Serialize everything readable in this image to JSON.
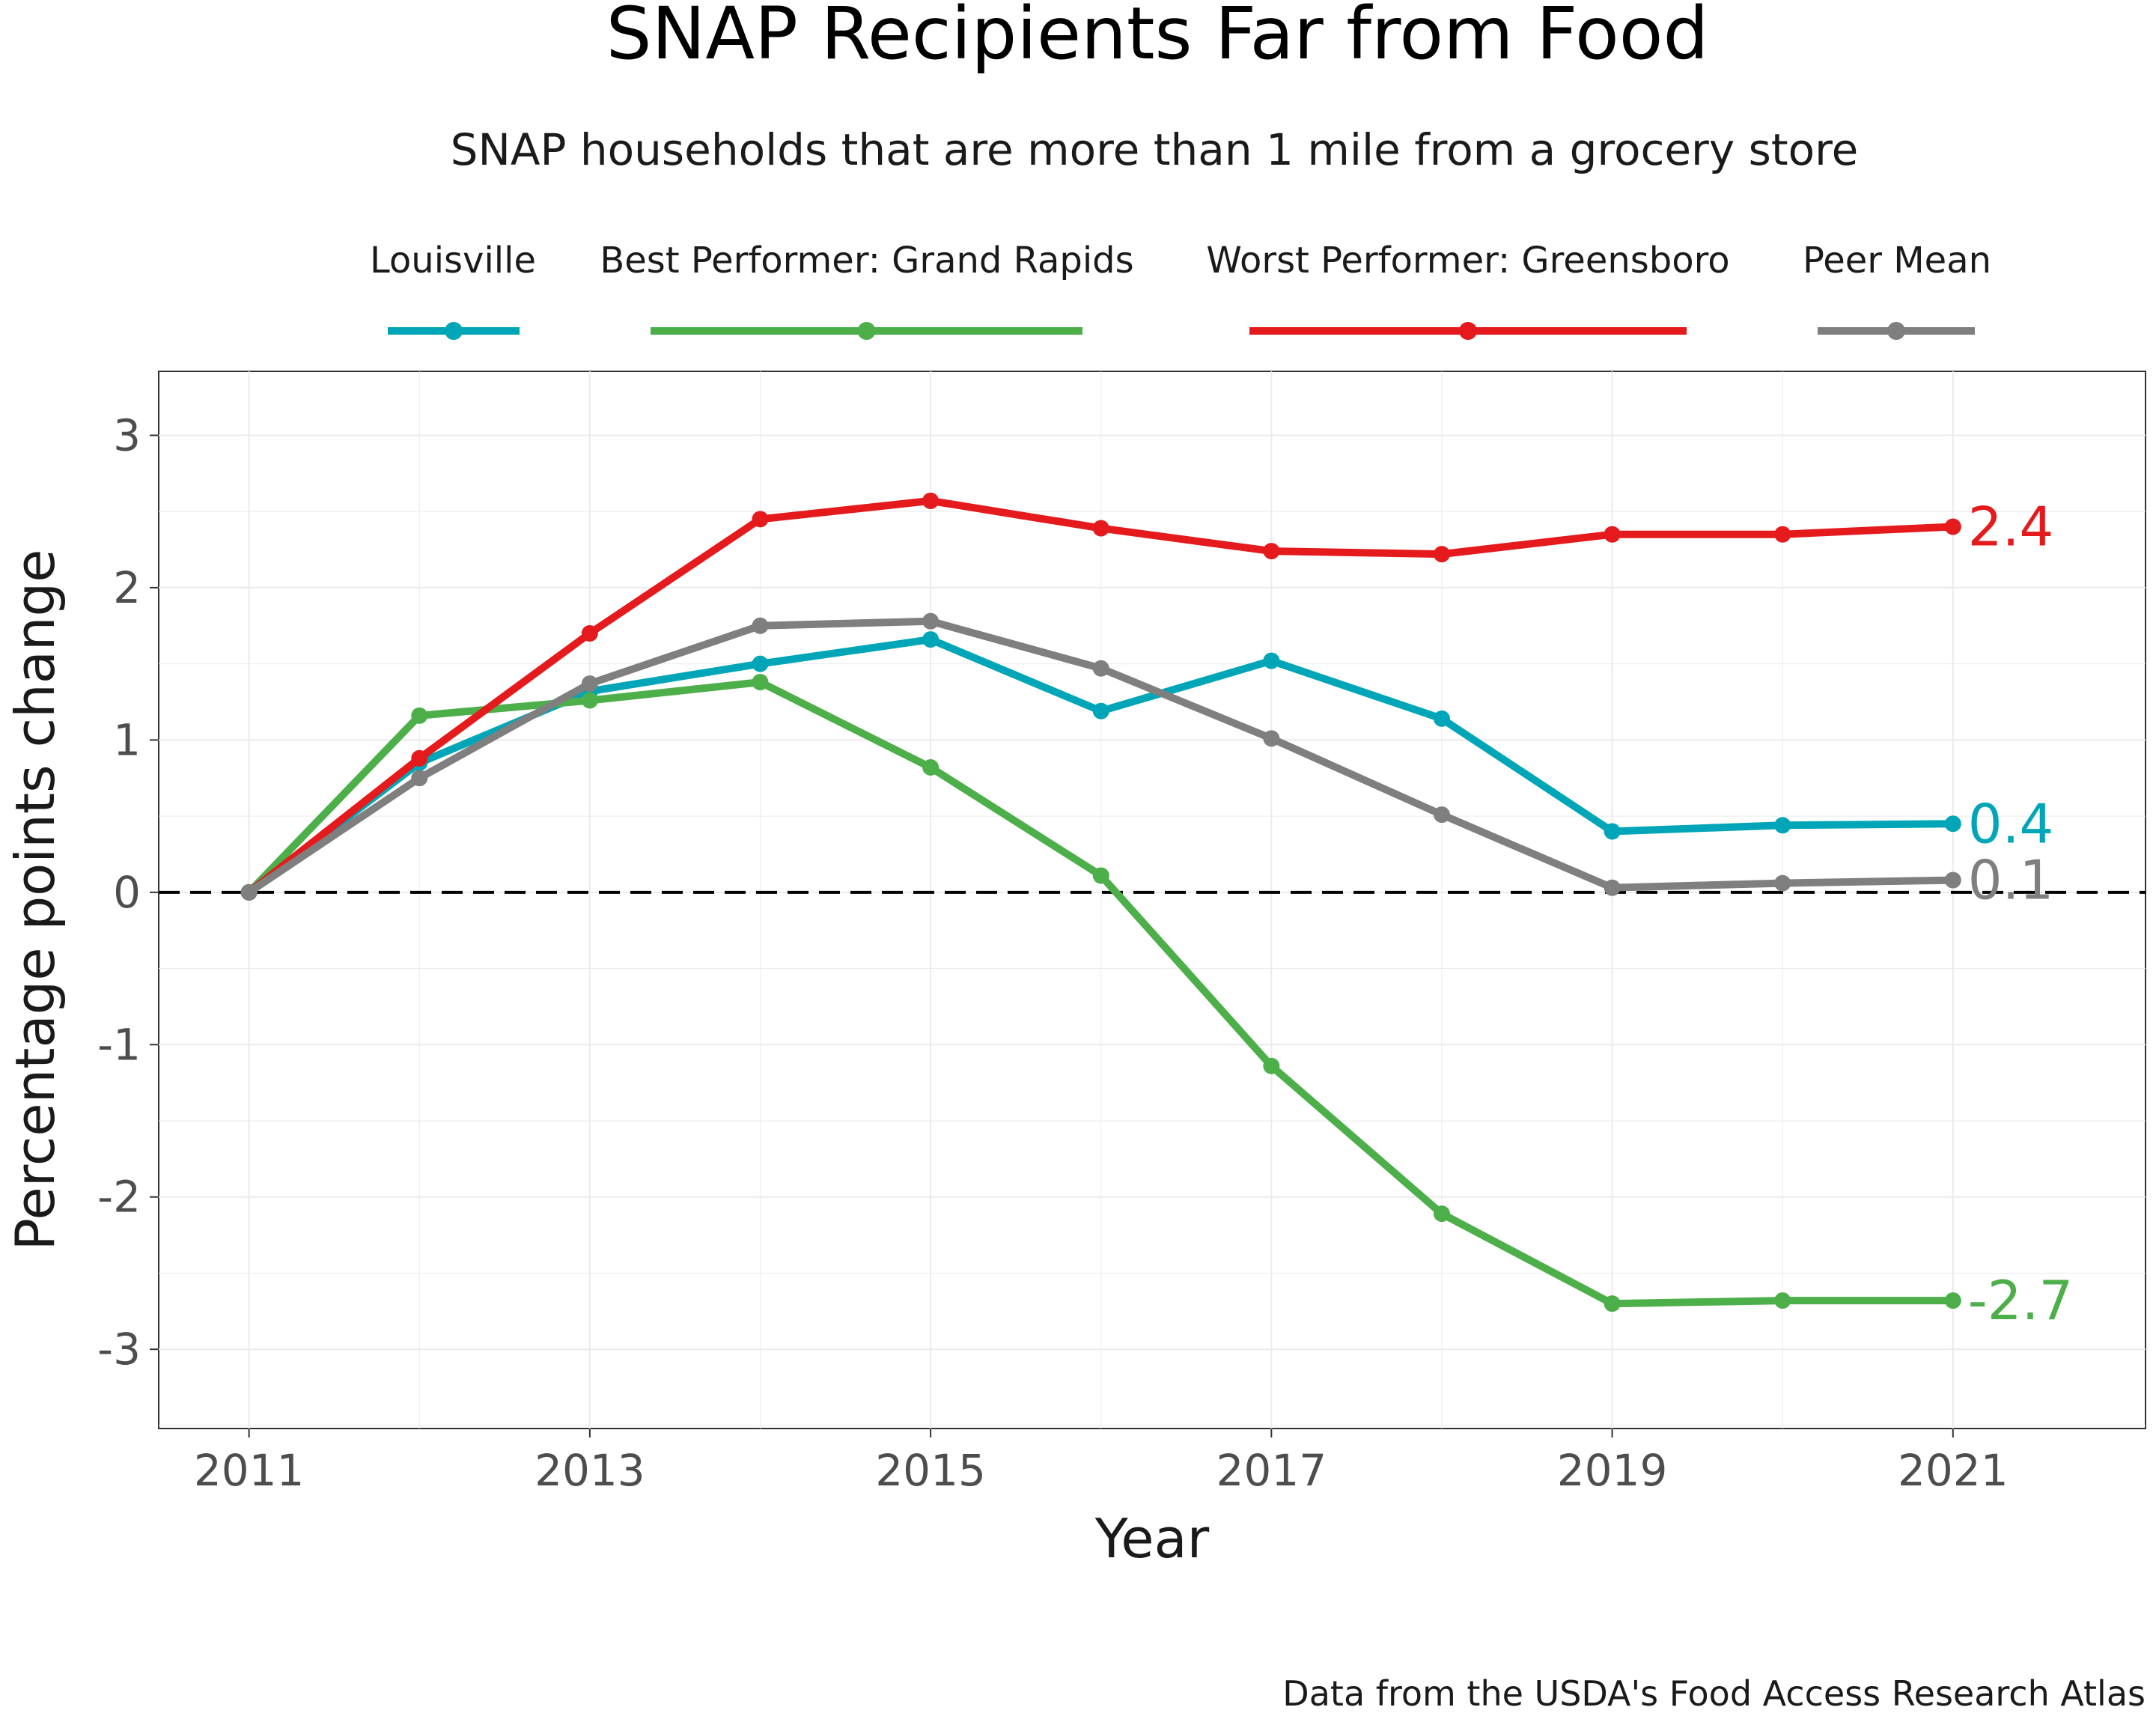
{
  "title": "SNAP Recipients Far from Food",
  "subtitle": "SNAP households that are more than 1 mile from a grocery store",
  "caption": "Data from the USDA's Food Access Research Atlas",
  "chart_data": {
    "type": "line",
    "xlabel": "Year",
    "ylabel": "Percentage points change",
    "x": [
      2011,
      2012,
      2013,
      2014,
      2015,
      2016,
      2017,
      2018,
      2019,
      2020,
      2021
    ],
    "xticks": [
      "2011",
      "2013",
      "2015",
      "2017",
      "2019",
      "2021"
    ],
    "xlim": [
      2010.47,
      2022.13
    ],
    "ylim": [
      -3.52,
      3.42
    ],
    "yticks": [
      "-3",
      "-2",
      "-1",
      "0",
      "1",
      "2",
      "3"
    ],
    "grid": true,
    "legend_position": "top",
    "reference_line": {
      "y": 0,
      "style": "dashed"
    },
    "series": [
      {
        "name": "Louisville",
        "color": "#00A6B8",
        "end_label": "0.4",
        "values": [
          0,
          0.85,
          1.32,
          1.5,
          1.66,
          1.19,
          1.52,
          1.14,
          0.4,
          0.44,
          0.45
        ]
      },
      {
        "name": "Best Performer: Grand Rapids",
        "color": "#4DAF4A",
        "end_label": "-2.7",
        "values": [
          0,
          1.16,
          1.26,
          1.38,
          0.82,
          0.11,
          -1.14,
          -2.11,
          -2.7,
          -2.68,
          -2.68
        ]
      },
      {
        "name": "Worst Performer: Greensboro",
        "color": "#E41A1C",
        "end_label": "2.4",
        "values": [
          0,
          0.88,
          1.7,
          2.45,
          2.57,
          2.39,
          2.24,
          2.22,
          2.35,
          2.35,
          2.4
        ]
      },
      {
        "name": "Peer Mean",
        "color": "#7F7F7F",
        "end_label": "0.1",
        "values": [
          0,
          0.75,
          1.37,
          1.75,
          1.78,
          1.47,
          1.01,
          0.51,
          0.03,
          0.06,
          0.08
        ]
      }
    ]
  }
}
